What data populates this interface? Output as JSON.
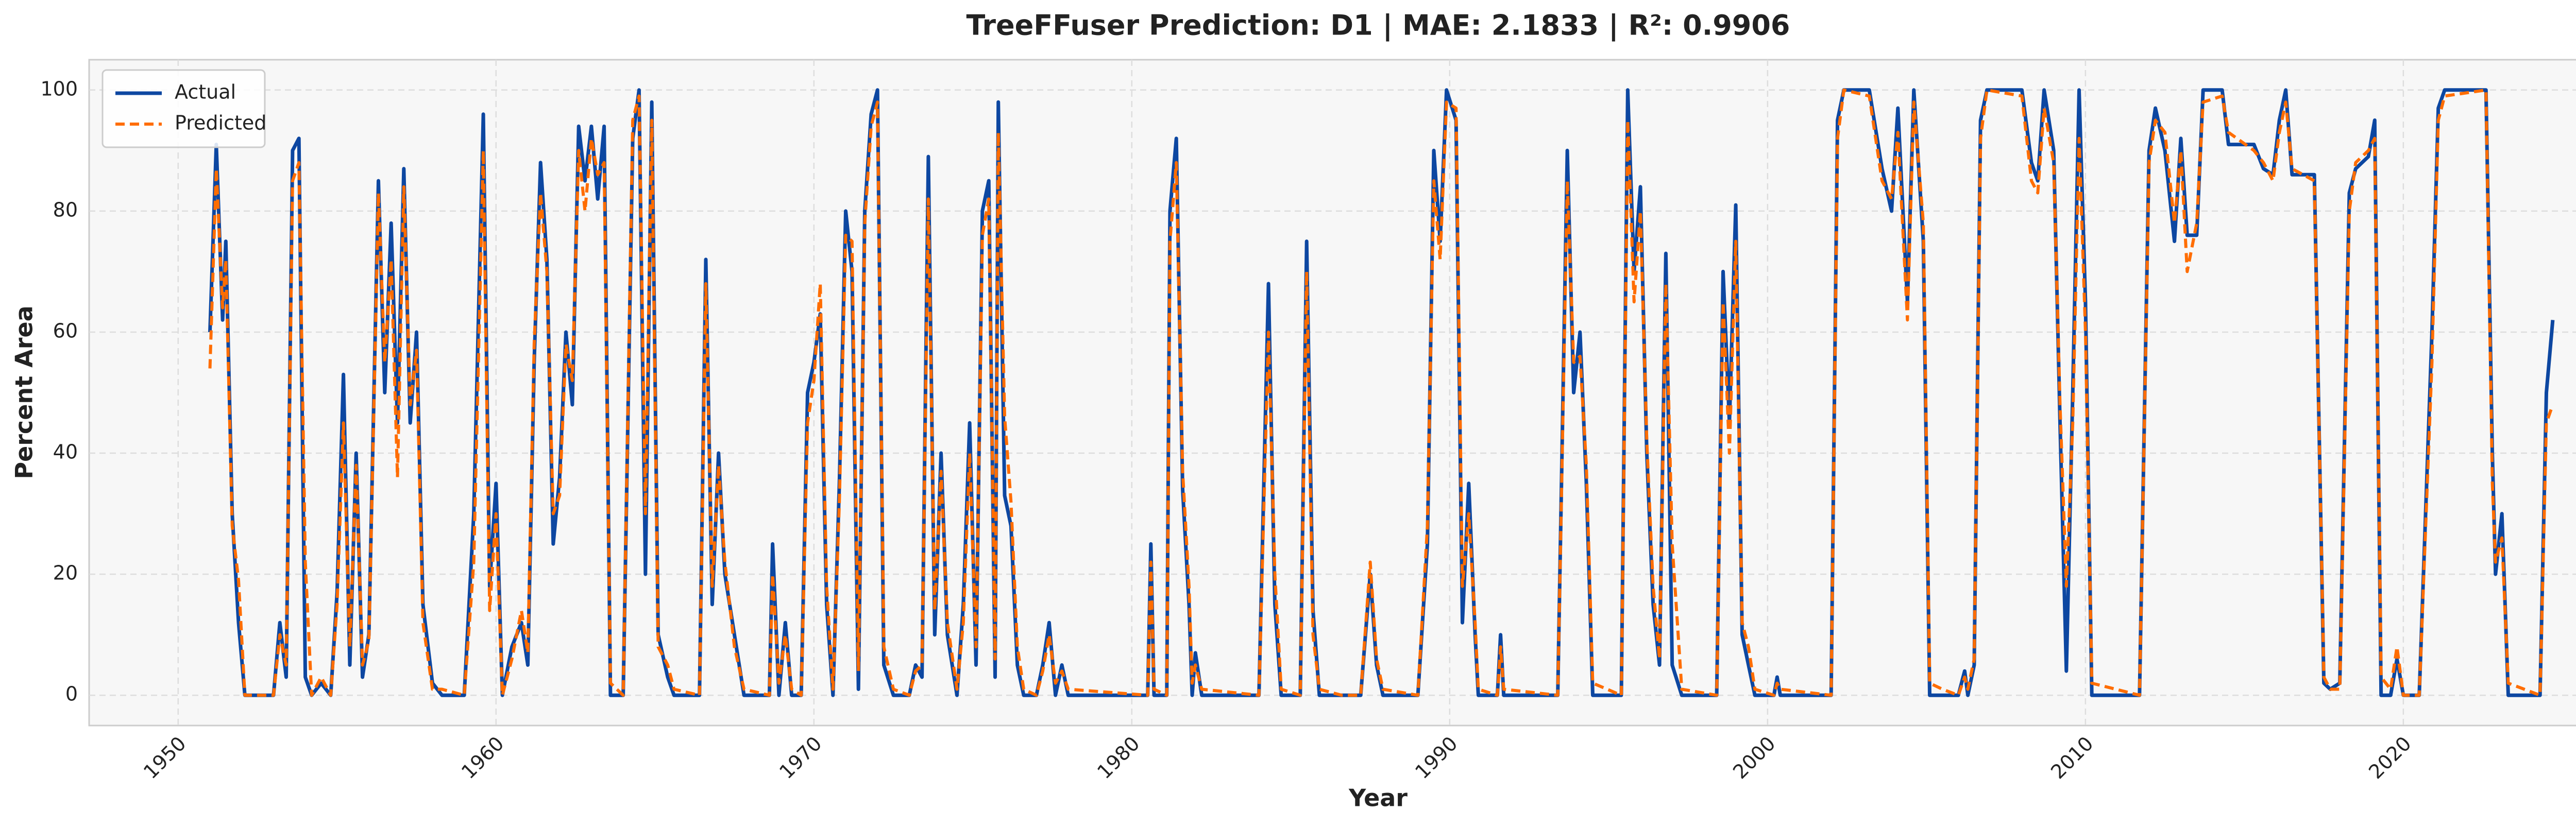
{
  "chart_data": {
    "type": "line",
    "title": "TreeFFuser Prediction: D1 | MAE: 2.1833 | R²: 0.9906",
    "x_label": "Year",
    "y_label": "Percent Area",
    "xlim": [
      1947.2,
      2028.3
    ],
    "ylim": [
      -5,
      105
    ],
    "xticks": [
      1950,
      1960,
      1970,
      1980,
      1990,
      2000,
      2010,
      2020
    ],
    "yticks": [
      0,
      20,
      40,
      60,
      80,
      100
    ],
    "grid": true,
    "legend": "upper left",
    "x": [
      1951.0,
      1951.2,
      1951.4,
      1951.5,
      1951.7,
      1951.9,
      1952.1,
      1953.0,
      1953.2,
      1953.4,
      1953.6,
      1953.8,
      1954.0,
      1954.2,
      1954.5,
      1954.8,
      1955.0,
      1955.2,
      1955.4,
      1955.6,
      1955.8,
      1956.0,
      1956.3,
      1956.5,
      1956.7,
      1956.9,
      1957.1,
      1957.3,
      1957.5,
      1957.7,
      1958.0,
      1958.3,
      1959.0,
      1959.3,
      1959.6,
      1959.8,
      1960.0,
      1960.2,
      1960.5,
      1960.8,
      1961.0,
      1961.2,
      1961.4,
      1961.6,
      1961.8,
      1962.0,
      1962.2,
      1962.4,
      1962.6,
      1962.8,
      1963.0,
      1963.2,
      1963.4,
      1963.6,
      1964.0,
      1964.3,
      1964.5,
      1964.7,
      1964.9,
      1965.1,
      1965.4,
      1965.6,
      1966.4,
      1966.6,
      1966.8,
      1967.0,
      1967.2,
      1967.5,
      1967.8,
      1968.6,
      1968.7,
      1968.9,
      1969.1,
      1969.3,
      1969.6,
      1969.8,
      1970.0,
      1970.2,
      1970.4,
      1970.6,
      1970.8,
      1971.0,
      1971.2,
      1971.4,
      1971.6,
      1971.8,
      1972.0,
      1972.2,
      1972.5,
      1973.0,
      1973.2,
      1973.4,
      1973.6,
      1973.8,
      1974.0,
      1974.2,
      1974.5,
      1974.7,
      1974.9,
      1975.1,
      1975.3,
      1975.5,
      1975.7,
      1975.8,
      1976.0,
      1976.2,
      1976.4,
      1976.6,
      1977.0,
      1977.2,
      1977.4,
      1977.6,
      1977.8,
      1978.0,
      1980.5,
      1980.6,
      1980.7,
      1981.1,
      1981.2,
      1981.4,
      1981.6,
      1981.8,
      1981.9,
      1982.0,
      1982.2,
      1984.0,
      1984.3,
      1984.5,
      1984.7,
      1985.3,
      1985.5,
      1985.7,
      1985.9,
      1986.6,
      1987.2,
      1987.5,
      1987.7,
      1987.9,
      1989.0,
      1989.3,
      1989.5,
      1989.7,
      1989.9,
      1990.2,
      1990.4,
      1990.6,
      1990.8,
      1990.9,
      1991.5,
      1991.6,
      1991.7,
      1993.4,
      1993.7,
      1993.9,
      1994.1,
      1994.3,
      1994.5,
      1995.4,
      1995.6,
      1995.8,
      1996.0,
      1996.2,
      1996.4,
      1996.6,
      1996.8,
      1997.0,
      1997.3,
      1998.4,
      1998.6,
      1998.8,
      1999.0,
      1999.2,
      1999.4,
      1999.6,
      2000.2,
      2000.3,
      2000.4,
      2002.0,
      2002.2,
      2002.4,
      2003.2,
      2003.6,
      2003.9,
      2004.1,
      2004.4,
      2004.6,
      2004.9,
      2005.1,
      2005.5,
      2006.0,
      2006.2,
      2006.3,
      2006.5,
      2006.7,
      2006.9,
      2008.0,
      2008.3,
      2008.5,
      2008.7,
      2009.0,
      2009.2,
      2009.4,
      2009.6,
      2009.8,
      2010.0,
      2010.2,
      2011.7,
      2012.0,
      2012.2,
      2012.5,
      2012.8,
      2013.0,
      2013.2,
      2013.5,
      2013.7,
      2014.3,
      2014.5,
      2015.3,
      2015.6,
      2015.9,
      2016.1,
      2016.3,
      2016.5,
      2017.2,
      2017.5,
      2017.7,
      2018.0,
      2018.3,
      2018.5,
      2018.9,
      2019.1,
      2019.3,
      2019.6,
      2019.8,
      2020.0,
      2020.5,
      2020.9,
      2021.1,
      2021.3,
      2022.6,
      2022.8,
      2022.9,
      2023.1,
      2023.3,
      2024.3,
      2024.5,
      2024.7
    ],
    "series": [
      {
        "name": "Actual",
        "color": "#0d47a1",
        "dashed": false,
        "values": [
          60,
          91,
          62,
          75,
          30,
          12,
          0,
          0,
          12,
          3,
          90,
          92,
          3,
          0,
          2,
          0,
          17,
          53,
          5,
          40,
          3,
          10,
          85,
          50,
          78,
          45,
          87,
          45,
          60,
          15,
          2,
          0,
          0,
          30,
          96,
          18,
          35,
          0,
          8,
          12,
          5,
          55,
          88,
          72,
          25,
          36,
          60,
          48,
          94,
          85,
          94,
          82,
          94,
          0,
          0,
          92,
          100,
          20,
          98,
          10,
          3,
          0,
          0,
          72,
          15,
          40,
          20,
          10,
          0,
          0,
          25,
          0,
          12,
          0,
          0,
          50,
          55,
          63,
          15,
          0,
          35,
          80,
          70,
          1,
          80,
          96,
          100,
          5,
          0,
          0,
          5,
          3,
          89,
          10,
          40,
          10,
          0,
          15,
          45,
          5,
          80,
          85,
          3,
          98,
          33,
          28,
          5,
          0,
          0,
          5,
          12,
          0,
          5,
          0,
          0,
          25,
          0,
          0,
          80,
          92,
          34,
          15,
          0,
          7,
          0,
          0,
          68,
          15,
          0,
          0,
          75,
          14,
          0,
          0,
          0,
          20,
          5,
          0,
          0,
          25,
          90,
          75,
          100,
          95,
          12,
          35,
          10,
          0,
          0,
          10,
          0,
          0,
          90,
          50,
          60,
          35,
          0,
          0,
          100,
          70,
          84,
          40,
          15,
          5,
          73,
          5,
          0,
          0,
          70,
          45,
          81,
          10,
          5,
          0,
          0,
          3,
          0,
          0,
          95,
          100,
          100,
          87,
          80,
          97,
          65,
          100,
          75,
          0,
          0,
          0,
          4,
          0,
          5,
          95,
          100,
          100,
          88,
          85,
          100,
          90,
          45,
          4,
          50,
          100,
          65,
          0,
          0,
          90,
          97,
          90,
          75,
          92,
          76,
          76,
          100,
          100,
          91,
          91,
          87,
          86,
          95,
          100,
          86,
          86,
          2,
          1,
          2,
          83,
          87,
          89,
          95,
          0,
          0,
          6,
          0,
          0,
          60,
          97,
          100,
          100,
          40,
          20,
          30,
          0,
          0,
          50,
          62
        ]
      },
      {
        "name": "Predicted",
        "color": "#ff6d00",
        "dashed": true,
        "values": [
          54,
          87,
          64,
          72,
          28,
          19,
          0,
          0,
          10,
          5,
          85,
          88,
          22,
          0,
          3,
          0,
          15,
          45,
          8,
          38,
          5,
          9,
          83,
          55,
          72,
          36,
          84,
          48,
          57,
          12,
          1,
          1,
          0,
          22,
          90,
          14,
          30,
          0,
          6,
          14,
          7,
          58,
          83,
          70,
          30,
          33,
          58,
          52,
          90,
          80,
          92,
          86,
          88,
          2,
          0,
          95,
          99,
          30,
          95,
          8,
          5,
          1,
          0,
          68,
          18,
          38,
          22,
          8,
          1,
          0,
          20,
          2,
          10,
          1,
          0,
          45,
          52,
          68,
          18,
          1,
          32,
          76,
          75,
          4,
          78,
          94,
          98,
          8,
          1,
          0,
          4,
          5,
          82,
          14,
          37,
          12,
          1,
          12,
          40,
          8,
          76,
          82,
          6,
          93,
          46,
          32,
          8,
          1,
          0,
          4,
          10,
          2,
          4,
          1,
          0,
          22,
          1,
          0,
          75,
          88,
          37,
          18,
          2,
          5,
          1,
          0,
          60,
          20,
          1,
          0,
          70,
          10,
          1,
          0,
          0,
          22,
          6,
          1,
          0,
          28,
          85,
          72,
          98,
          97,
          18,
          30,
          12,
          1,
          0,
          8,
          1,
          0,
          85,
          55,
          56,
          38,
          2,
          0,
          95,
          65,
          80,
          42,
          18,
          6,
          68,
          25,
          1,
          0,
          65,
          40,
          75,
          12,
          8,
          1,
          0,
          2,
          1,
          0,
          92,
          100,
          99,
          85,
          82,
          93,
          62,
          98,
          78,
          2,
          1,
          0,
          3,
          1,
          6,
          92,
          100,
          99,
          85,
          83,
          97,
          88,
          48,
          18,
          45,
          92,
          60,
          2,
          0,
          88,
          95,
          93,
          78,
          90,
          70,
          78,
          98,
          99,
          93,
          90,
          88,
          85,
          93,
          98,
          87,
          85,
          3,
          1,
          1,
          80,
          88,
          90,
          92,
          3,
          1,
          8,
          0,
          0,
          55,
          95,
          99,
          100,
          35,
          22,
          26,
          2,
          0,
          45,
          48
        ]
      }
    ]
  }
}
